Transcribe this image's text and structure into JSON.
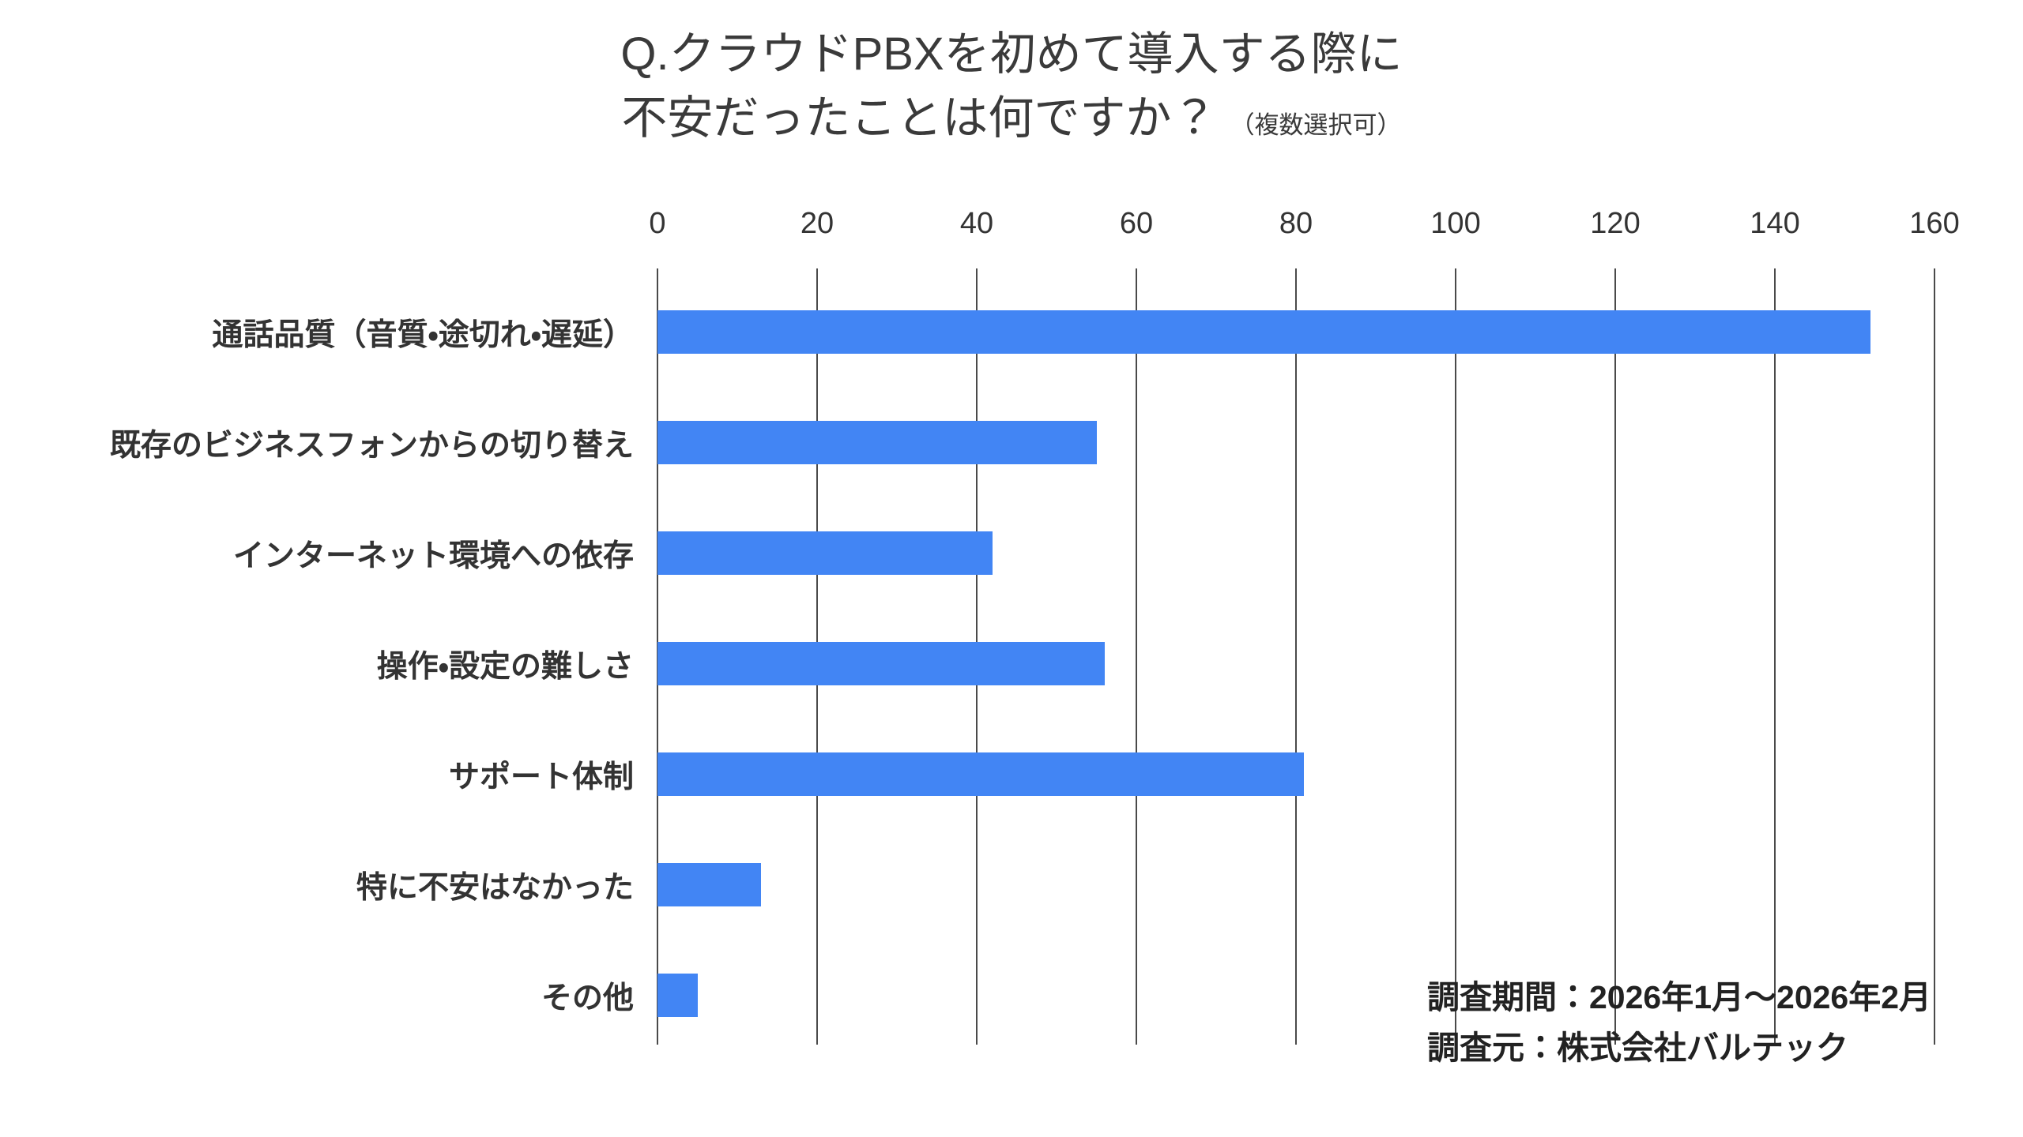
{
  "title": {
    "line1": "Q.クラウドPBXを初めて導入する際に",
    "line2": "不安だったことは何ですか？",
    "note": "（複数選択可）"
  },
  "footer": {
    "period": "調査期間：2026年1月～2026年2月",
    "source": "調査元：株式会社バルテック"
  },
  "colors": {
    "bar": "#4285F4",
    "gridline": "#4a4a4a",
    "text": "#333333"
  },
  "chart_data": {
    "type": "bar",
    "orientation": "horizontal",
    "title": "Q.クラウドPBXを初めて導入する際に不安だったことは何ですか？（複数選択可）",
    "categories": [
      "通話品質（音質・途切れ・遅延）",
      "既存のビジネスフォンからの切り替え",
      "インターネット環境への依存",
      "操作・設定の難しさ",
      "サポート体制",
      "特に不安はなかった",
      "その他"
    ],
    "values": [
      152,
      55,
      42,
      56,
      81,
      13,
      5
    ],
    "x_ticks": [
      0,
      20,
      40,
      60,
      80,
      100,
      120,
      140,
      160
    ],
    "xlim": [
      0,
      160
    ],
    "xlabel": "",
    "ylabel": "",
    "grid": true,
    "legend": false
  }
}
